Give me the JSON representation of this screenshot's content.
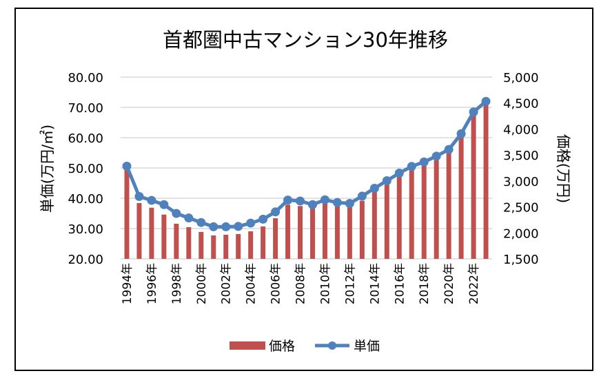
{
  "chart_data": {
    "type": "bar+line",
    "title": "首都圏中古マンション30年推移",
    "categories": [
      "1994年",
      "1995年",
      "1996年",
      "1997年",
      "1998年",
      "1999年",
      "2000年",
      "2001年",
      "2002年",
      "2003年",
      "2004年",
      "2005年",
      "2006年",
      "2007年",
      "2008年",
      "2009年",
      "2010年",
      "2011年",
      "2012年",
      "2013年",
      "2014年",
      "2015年",
      "2016年",
      "2017年",
      "2018年",
      "2019年",
      "2020年",
      "2021年",
      "2022年",
      "2023年"
    ],
    "series": [
      {
        "name": "価格",
        "type": "bar",
        "axis": "right",
        "color": "#C0504D",
        "values": [
          3214,
          2574,
          2485,
          2353,
          2176,
          2110,
          2017,
          1951,
          1964,
          1977,
          2030,
          2123,
          2282,
          2543,
          2517,
          2485,
          2561,
          2508,
          2494,
          2618,
          2795,
          2928,
          3091,
          3237,
          3313,
          3427,
          3546,
          3843,
          4275,
          4497
        ]
      },
      {
        "name": "単価",
        "type": "line",
        "axis": "left",
        "color": "#4F81BD",
        "values": [
          50.6,
          40.6,
          39.3,
          37.9,
          35.0,
          33.5,
          32.0,
          30.6,
          30.6,
          30.7,
          31.8,
          33.1,
          35.5,
          39.4,
          39.1,
          37.9,
          39.5,
          38.6,
          38.3,
          40.7,
          43.3,
          45.8,
          48.3,
          50.5,
          52.0,
          53.9,
          56.1,
          61.3,
          68.5,
          72.0
        ]
      }
    ],
    "ylabel": "単価(万円/㎡)",
    "y2label": "価格(万円)",
    "ylim": [
      20,
      80
    ],
    "y2lim": [
      1500,
      5000
    ],
    "yticks": [
      "20.00",
      "30.00",
      "40.00",
      "50.00",
      "60.00",
      "70.00",
      "80.00"
    ],
    "y2ticks": [
      "1,500",
      "2,000",
      "2,500",
      "3,000",
      "3,500",
      "4,000",
      "4,500",
      "5,000"
    ],
    "xtick_labels_shown": [
      "1994年",
      "1996年",
      "1998年",
      "2000年",
      "2002年",
      "2004年",
      "2006年",
      "2008年",
      "2010年",
      "2012年",
      "2014年",
      "2016年",
      "2018年",
      "2020年",
      "2022年"
    ],
    "grid": true,
    "legend": "bottom"
  }
}
